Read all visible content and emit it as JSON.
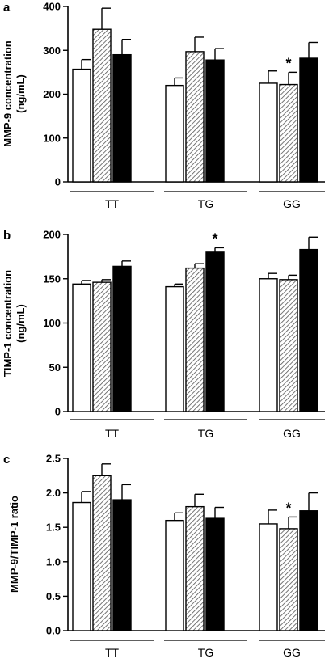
{
  "colors": {
    "open": "#ffffff",
    "hatched": "#d8d8d8",
    "solid": "#000000",
    "stroke": "#000000"
  },
  "chart_data": [
    {
      "type": "bar",
      "panel": "a",
      "ylabel_lines": [
        "MMP-9 concentration",
        "(ng/mL)"
      ],
      "ylim": [
        0,
        400
      ],
      "yticks": [
        0,
        100,
        200,
        300,
        400
      ],
      "tick_labels": [
        "0",
        "100",
        "200",
        "300",
        "400"
      ],
      "categories": [
        "TT",
        "TG",
        "GG"
      ],
      "series": [
        {
          "style": "open",
          "values": [
            257,
            220,
            225
          ],
          "errors": [
            22,
            17,
            28
          ]
        },
        {
          "style": "hatched",
          "values": [
            348,
            297,
            222
          ],
          "errors": [
            48,
            33,
            28
          ]
        },
        {
          "style": "solid",
          "values": [
            290,
            278,
            282
          ],
          "errors": [
            35,
            26,
            36
          ]
        }
      ],
      "annotations": [
        {
          "category": 2,
          "series": 1,
          "text": "*"
        }
      ]
    },
    {
      "type": "bar",
      "panel": "b",
      "ylabel_lines": [
        "TIMP-1 concentration",
        "(ng/mL)"
      ],
      "ylim": [
        0,
        200
      ],
      "yticks": [
        0,
        50,
        100,
        150,
        200
      ],
      "tick_labels": [
        "0",
        "50",
        "100",
        "150",
        "200"
      ],
      "categories": [
        "TT",
        "TG",
        "GG"
      ],
      "series": [
        {
          "style": "open",
          "values": [
            144,
            141,
            150
          ],
          "errors": [
            4,
            3,
            6
          ]
        },
        {
          "style": "hatched",
          "values": [
            146,
            162,
            149
          ],
          "errors": [
            3,
            5,
            5
          ]
        },
        {
          "style": "solid",
          "values": [
            164,
            180,
            183
          ],
          "errors": [
            6,
            5,
            14
          ]
        }
      ],
      "annotations": [
        {
          "category": 1,
          "series": 2,
          "text": "*"
        }
      ]
    },
    {
      "type": "bar",
      "panel": "c",
      "ylabel_lines": [
        "MMP-9/TIMP-1 ratio"
      ],
      "ylim": [
        0,
        2.5
      ],
      "yticks": [
        0,
        0.5,
        1,
        1.5,
        2,
        2.5
      ],
      "tick_labels": [
        "0.0",
        "0.5",
        "1.0",
        "1.5",
        "2.0",
        "2.5"
      ],
      "categories": [
        "TT",
        "TG",
        "GG"
      ],
      "series": [
        {
          "style": "open",
          "values": [
            1.86,
            1.6,
            1.55
          ],
          "errors": [
            0.16,
            0.11,
            0.2
          ]
        },
        {
          "style": "hatched",
          "values": [
            2.25,
            1.8,
            1.48
          ],
          "errors": [
            0.17,
            0.18,
            0.17
          ]
        },
        {
          "style": "solid",
          "values": [
            1.9,
            1.63,
            1.74
          ],
          "errors": [
            0.22,
            0.16,
            0.26
          ]
        }
      ],
      "annotations": [
        {
          "category": 2,
          "series": 1,
          "text": "*"
        }
      ]
    }
  ]
}
